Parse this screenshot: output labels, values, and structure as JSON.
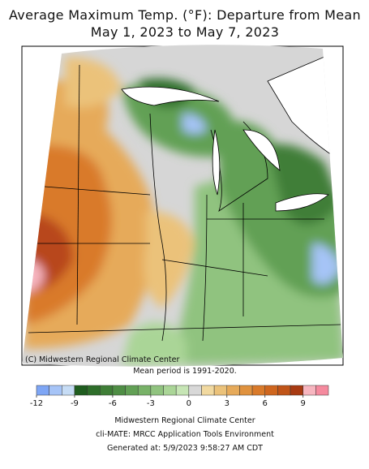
{
  "title": [
    "Average Maximum Temp. (°F): Departure from Mean",
    "May 1, 2023 to May 7, 2023"
  ],
  "credit": "(C) Midwestern Regional Climate Center",
  "note": "Mean period is 1991-2020.",
  "colorbar": {
    "lim": [
      -12,
      11
    ],
    "ticks": [
      -12,
      -9,
      -6,
      -3,
      0,
      3,
      6,
      9
    ],
    "colors": [
      "#7ea6f5",
      "#a6c4f7",
      "#c6dcf5",
      "#1f5d1f",
      "#2e6e2a",
      "#3f7e37",
      "#4f8e45",
      "#62a055",
      "#78b268",
      "#90c37f",
      "#aad597",
      "#c6e5b5",
      "#d8d8d8",
      "#f1d9a0",
      "#ebc27a",
      "#e6aa5a",
      "#e0923e",
      "#d97a2a",
      "#cf661e",
      "#c05418",
      "#a83a12",
      "#f7b6c0",
      "#f58a9e"
    ]
  },
  "footer": [
    "Midwestern Regional Climate Center",
    "cli-MATE: MRCC Application Tools Environment",
    "Generated at: 5/9/2023 9:58:27 AM CDT"
  ]
}
